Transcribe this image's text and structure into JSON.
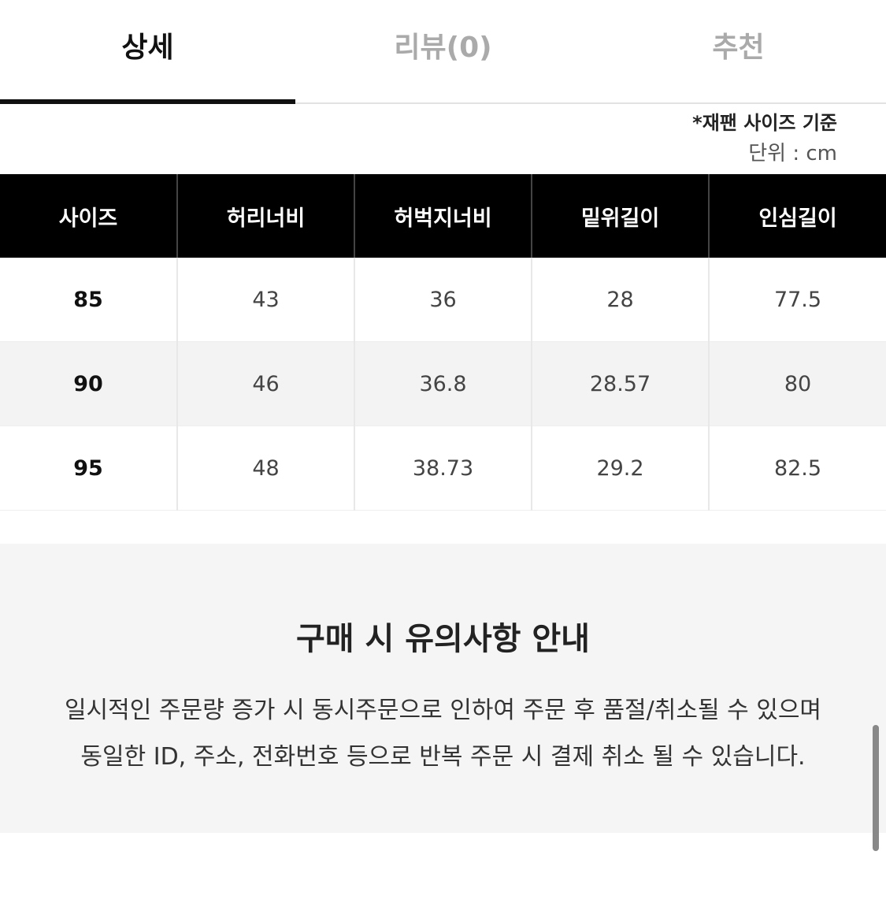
{
  "tabs": [
    "상세",
    "리뷰(0)",
    "추천"
  ],
  "note": "*재팬 사이즈 기준",
  "unit": "단위 : cm",
  "table": {
    "header": [
      "사이즈",
      "허리너비",
      "허벅지너비",
      "밑위길이",
      "인심길이"
    ],
    "rows": [
      [
        "85",
        "43",
        "36",
        "28",
        "77.5"
      ],
      [
        "90",
        "46",
        "36.8",
        "28.57",
        "80"
      ],
      [
        "95",
        "48",
        "38.73",
        "29.2",
        "82.5"
      ]
    ]
  },
  "notice": {
    "title": "구매 시 유의사항 안내",
    "lines": [
      "일시적인 주문량 증가 시 동시주문으로 인하여 주문 후 품절/취소될 수 있으며",
      "동일한 ID, 주소, 전화번호 등으로 반복 주문 시 결제 취소 될 수 있습니다."
    ]
  }
}
